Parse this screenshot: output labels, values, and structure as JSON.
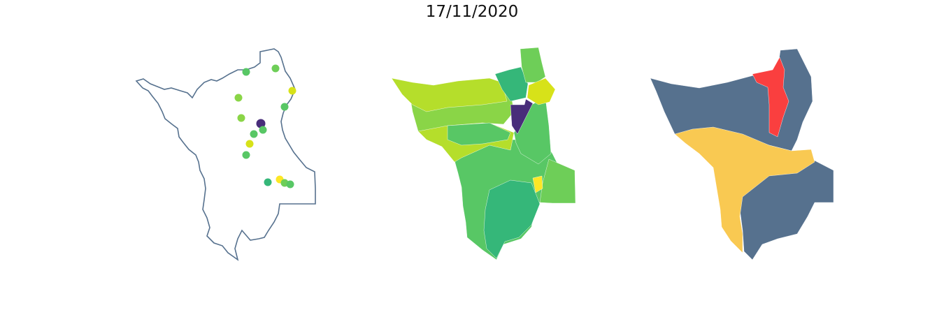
{
  "title": "17/11/2020",
  "colors": {
    "outline": "#56718e",
    "viridis_purple": "#482d7a",
    "viridis_teal": "#35b779",
    "green_mid": "#58c765",
    "green_light": "#6ece58",
    "green_lime": "#8ad547",
    "lime_yellow": "#b5de2b",
    "yellow_green": "#d7e219",
    "yellow": "#fde725",
    "slate": "#56718e",
    "red": "#fa3f3f",
    "gold": "#f9c952"
  },
  "panels": [
    {
      "name": "points-map",
      "type": "outline-with-points"
    },
    {
      "name": "choropleth-map",
      "type": "viridis-choropleth"
    },
    {
      "name": "category-map",
      "type": "three-class-choropleth"
    }
  ]
}
